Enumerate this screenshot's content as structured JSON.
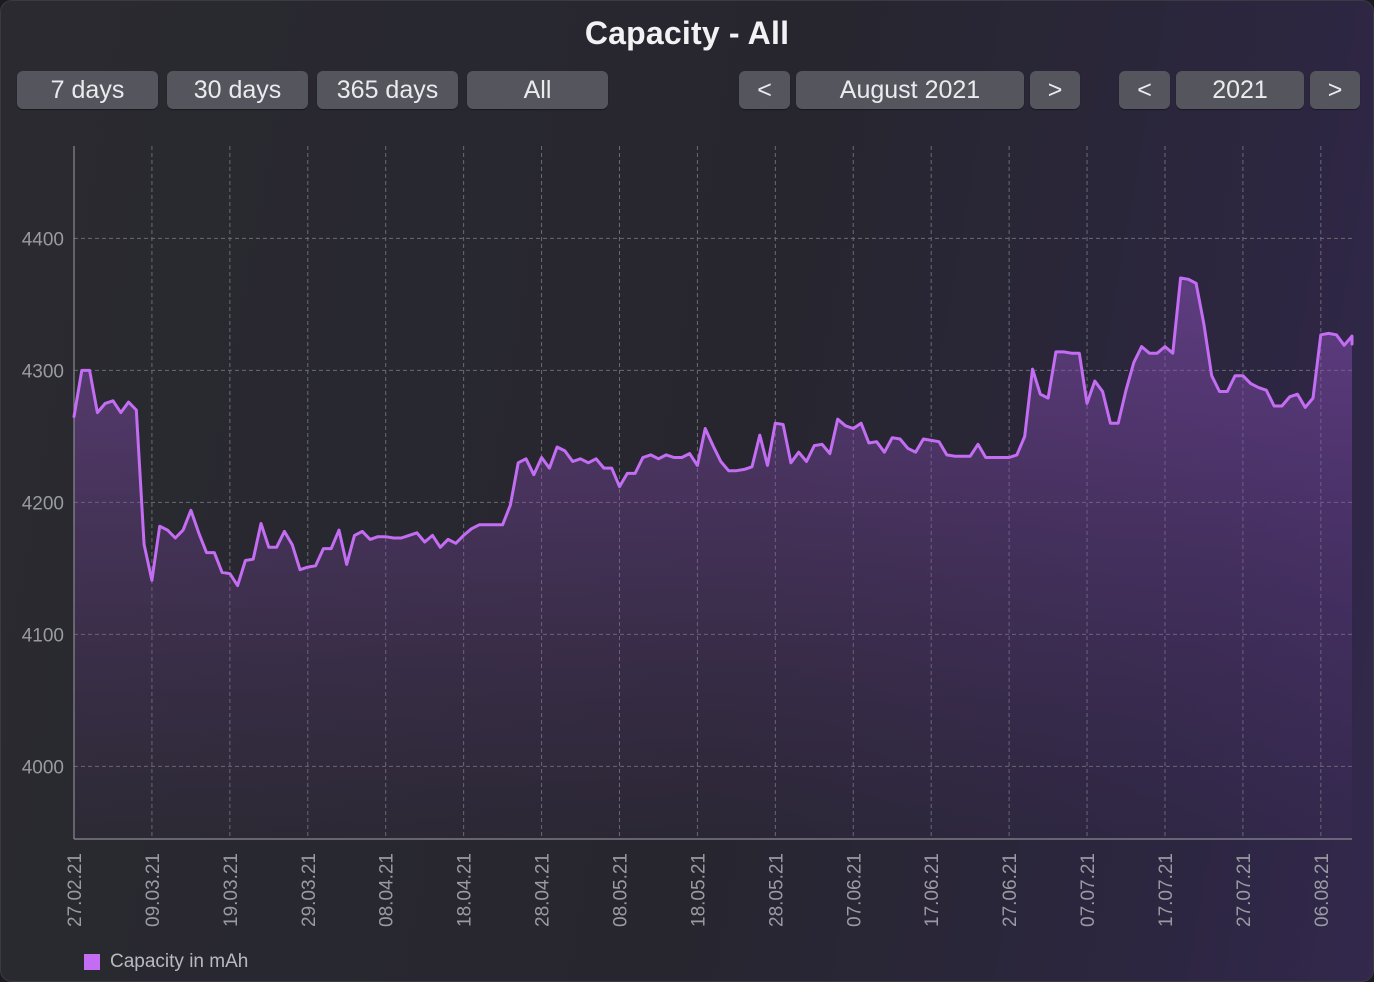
{
  "title": "Capacity - All",
  "range_buttons": [
    "7 days",
    "30 days",
    "365 days",
    "All"
  ],
  "month_nav": {
    "prev": "<",
    "label": "August 2021",
    "next": ">"
  },
  "year_nav": {
    "prev": "<",
    "label": "2021",
    "next": ">"
  },
  "legend": {
    "label": "Capacity in mAh",
    "color": "#c36df2"
  },
  "chart_data": {
    "type": "area",
    "title": "Capacity - All",
    "xlabel": "",
    "ylabel": "",
    "ylim": [
      3945,
      4470
    ],
    "yticks": [
      4000,
      4100,
      4200,
      4300,
      4400
    ],
    "xticks": [
      "27.02.21",
      "09.03.21",
      "19.03.21",
      "29.03.21",
      "08.04.21",
      "18.04.21",
      "28.04.21",
      "08.05.21",
      "18.05.21",
      "28.05.21",
      "07.06.21",
      "17.06.21",
      "27.06.21",
      "07.07.21",
      "17.07.21",
      "27.07.21",
      "06.08.21"
    ],
    "xlim": [
      "27.02.21",
      "10.08.21"
    ],
    "grid": true,
    "legend_position": "bottom-left",
    "series": [
      {
        "name": "Capacity in mAh",
        "color": "#c36df2",
        "points": [
          [
            "27.02.21",
            4265
          ],
          [
            "28.02.21",
            4300
          ],
          [
            "01.03.21",
            4300
          ],
          [
            "02.03.21",
            4268
          ],
          [
            "03.03.21",
            4275
          ],
          [
            "04.03.21",
            4277
          ],
          [
            "05.03.21",
            4268
          ],
          [
            "06.03.21",
            4276
          ],
          [
            "07.03.21",
            4270
          ],
          [
            "08.03.21",
            4168
          ],
          [
            "09.03.21",
            4141
          ],
          [
            "10.03.21",
            4182
          ],
          [
            "11.03.21",
            4179
          ],
          [
            "12.03.21",
            4173
          ],
          [
            "13.03.21",
            4179
          ],
          [
            "14.03.21",
            4194
          ],
          [
            "15.03.21",
            4177
          ],
          [
            "16.03.21",
            4162
          ],
          [
            "17.03.21",
            4162
          ],
          [
            "18.03.21",
            4147
          ],
          [
            "19.03.21",
            4146
          ],
          [
            "20.03.21",
            4137
          ],
          [
            "21.03.21",
            4156
          ],
          [
            "22.03.21",
            4157
          ],
          [
            "23.03.21",
            4184
          ],
          [
            "24.03.21",
            4166
          ],
          [
            "25.03.21",
            4166
          ],
          [
            "26.03.21",
            4178
          ],
          [
            "27.03.21",
            4168
          ],
          [
            "28.03.21",
            4149
          ],
          [
            "29.03.21",
            4151
          ],
          [
            "30.03.21",
            4152
          ],
          [
            "31.03.21",
            4165
          ],
          [
            "01.04.21",
            4165
          ],
          [
            "02.04.21",
            4179
          ],
          [
            "03.04.21",
            4153
          ],
          [
            "04.04.21",
            4175
          ],
          [
            "05.04.21",
            4178
          ],
          [
            "06.04.21",
            4172
          ],
          [
            "07.04.21",
            4174
          ],
          [
            "08.04.21",
            4174
          ],
          [
            "09.04.21",
            4173
          ],
          [
            "10.04.21",
            4173
          ],
          [
            "11.04.21",
            4175
          ],
          [
            "12.04.21",
            4177
          ],
          [
            "13.04.21",
            4170
          ],
          [
            "14.04.21",
            4175
          ],
          [
            "15.04.21",
            4166
          ],
          [
            "16.04.21",
            4172
          ],
          [
            "17.04.21",
            4169
          ],
          [
            "18.04.21",
            4175
          ],
          [
            "19.04.21",
            4180
          ],
          [
            "20.04.21",
            4183
          ],
          [
            "21.04.21",
            4183
          ],
          [
            "22.04.21",
            4183
          ],
          [
            "23.04.21",
            4183
          ],
          [
            "24.04.21",
            4198
          ],
          [
            "25.04.21",
            4230
          ],
          [
            "26.04.21",
            4233
          ],
          [
            "27.04.21",
            4221
          ],
          [
            "28.04.21",
            4234
          ],
          [
            "29.04.21",
            4226
          ],
          [
            "30.04.21",
            4242
          ],
          [
            "01.05.21",
            4239
          ],
          [
            "02.05.21",
            4231
          ],
          [
            "03.05.21",
            4233
          ],
          [
            "04.05.21",
            4230
          ],
          [
            "05.05.21",
            4233
          ],
          [
            "06.05.21",
            4226
          ],
          [
            "07.05.21",
            4226
          ],
          [
            "08.05.21",
            4212
          ],
          [
            "09.05.21",
            4222
          ],
          [
            "10.05.21",
            4222
          ],
          [
            "11.05.21",
            4234
          ],
          [
            "12.05.21",
            4236
          ],
          [
            "13.05.21",
            4233
          ],
          [
            "14.05.21",
            4236
          ],
          [
            "15.05.21",
            4234
          ],
          [
            "16.05.21",
            4234
          ],
          [
            "17.05.21",
            4237
          ],
          [
            "18.05.21",
            4228
          ],
          [
            "19.05.21",
            4256
          ],
          [
            "20.05.21",
            4243
          ],
          [
            "21.05.21",
            4231
          ],
          [
            "22.05.21",
            4224
          ],
          [
            "23.05.21",
            4224
          ],
          [
            "24.05.21",
            4225
          ],
          [
            "25.05.21",
            4227
          ],
          [
            "26.05.21",
            4251
          ],
          [
            "27.05.21",
            4228
          ],
          [
            "28.05.21",
            4260
          ],
          [
            "29.05.21",
            4259
          ],
          [
            "30.05.21",
            4230
          ],
          [
            "31.05.21",
            4238
          ],
          [
            "01.06.21",
            4231
          ],
          [
            "02.06.21",
            4243
          ],
          [
            "03.06.21",
            4244
          ],
          [
            "04.06.21",
            4237
          ],
          [
            "05.06.21",
            4263
          ],
          [
            "06.06.21",
            4258
          ],
          [
            "07.06.21",
            4256
          ],
          [
            "08.06.21",
            4260
          ],
          [
            "09.06.21",
            4245
          ],
          [
            "10.06.21",
            4246
          ],
          [
            "11.06.21",
            4238
          ],
          [
            "12.06.21",
            4249
          ],
          [
            "13.06.21",
            4248
          ],
          [
            "14.06.21",
            4241
          ],
          [
            "15.06.21",
            4238
          ],
          [
            "16.06.21",
            4248
          ],
          [
            "17.06.21",
            4247
          ],
          [
            "18.06.21",
            4246
          ],
          [
            "19.06.21",
            4236
          ],
          [
            "20.06.21",
            4235
          ],
          [
            "21.06.21",
            4235
          ],
          [
            "22.06.21",
            4235
          ],
          [
            "23.06.21",
            4244
          ],
          [
            "24.06.21",
            4234
          ],
          [
            "25.06.21",
            4234
          ],
          [
            "26.06.21",
            4234
          ],
          [
            "27.06.21",
            4234
          ],
          [
            "28.06.21",
            4236
          ],
          [
            "29.06.21",
            4250
          ],
          [
            "30.06.21",
            4301
          ],
          [
            "01.07.21",
            4282
          ],
          [
            "02.07.21",
            4279
          ],
          [
            "03.07.21",
            4314
          ],
          [
            "04.07.21",
            4314
          ],
          [
            "05.07.21",
            4313
          ],
          [
            "06.07.21",
            4313
          ],
          [
            "07.07.21",
            4275
          ],
          [
            "08.07.21",
            4292
          ],
          [
            "09.07.21",
            4284
          ],
          [
            "10.07.21",
            4260
          ],
          [
            "11.07.21",
            4260
          ],
          [
            "12.07.21",
            4285
          ],
          [
            "13.07.21",
            4306
          ],
          [
            "14.07.21",
            4318
          ],
          [
            "15.07.21",
            4313
          ],
          [
            "16.07.21",
            4313
          ],
          [
            "17.07.21",
            4318
          ],
          [
            "18.07.21",
            4313
          ],
          [
            "19.07.21",
            4370
          ],
          [
            "20.07.21",
            4369
          ],
          [
            "21.07.21",
            4366
          ],
          [
            "22.07.21",
            4335
          ],
          [
            "23.07.21",
            4296
          ],
          [
            "24.07.21",
            4284
          ],
          [
            "25.07.21",
            4284
          ],
          [
            "26.07.21",
            4296
          ],
          [
            "27.07.21",
            4296
          ],
          [
            "28.07.21",
            4290
          ],
          [
            "29.07.21",
            4287
          ],
          [
            "30.07.21",
            4285
          ],
          [
            "31.07.21",
            4273
          ],
          [
            "01.08.21",
            4273
          ],
          [
            "02.08.21",
            4280
          ],
          [
            "03.08.21",
            4282
          ],
          [
            "04.08.21",
            4272
          ],
          [
            "05.08.21",
            4279
          ],
          [
            "06.08.21",
            4327
          ],
          [
            "07.08.21",
            4328
          ],
          [
            "08.08.21",
            4327
          ],
          [
            "09.08.21",
            4319
          ],
          [
            "10.08.21",
            4326
          ],
          [
            "10.08.21",
            4320
          ]
        ]
      }
    ]
  }
}
